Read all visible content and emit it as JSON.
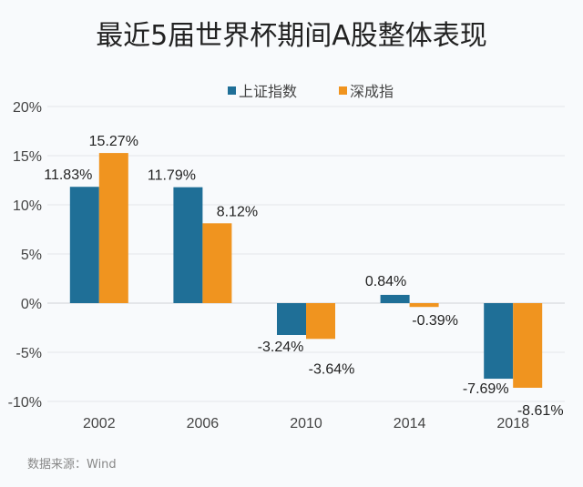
{
  "title": "最近5届世界杯期间A股整体表现",
  "source": "数据来源：Wind",
  "watermark": "Wind",
  "chart_data": {
    "type": "bar",
    "title": "最近5届世界杯期间A股整体表现",
    "categories": [
      "2002",
      "2006",
      "2010",
      "2014",
      "2018"
    ],
    "series": [
      {
        "name": "上证指数",
        "color": "#1f6f97",
        "values": [
          11.83,
          11.79,
          -3.24,
          0.84,
          -7.69
        ],
        "labels": [
          "11.83%",
          "11.79%",
          "-3.24%",
          "0.84%",
          "-7.69%"
        ]
      },
      {
        "name": "深成指",
        "color": "#f0941f",
        "values": [
          15.27,
          8.12,
          -3.64,
          -0.39,
          -8.61
        ],
        "labels": [
          "15.27%",
          "8.12%",
          "-3.64%",
          "-0.39%",
          "-8.61%"
        ]
      }
    ],
    "yticks": [
      "20%",
      "15%",
      "10%",
      "5%",
      "0%",
      "-5%",
      "-10%"
    ],
    "ylim": [
      -10,
      20
    ],
    "grid": true,
    "legend": "top"
  }
}
